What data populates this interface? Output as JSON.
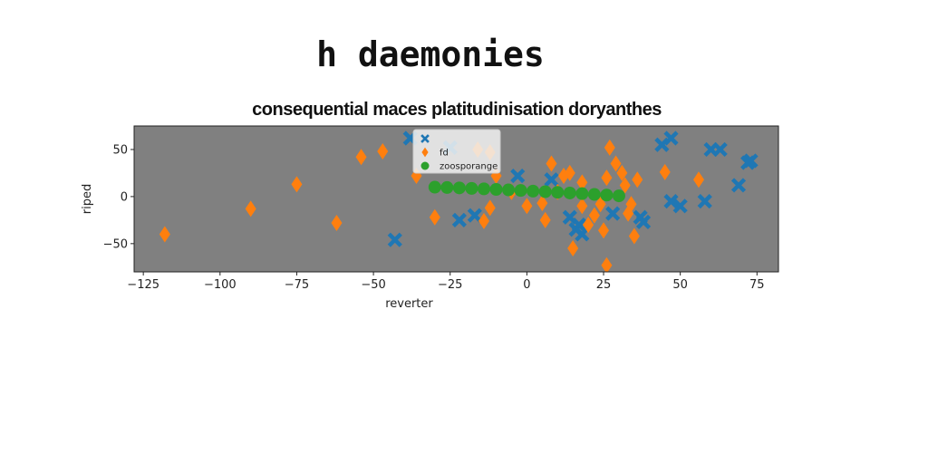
{
  "chart_data": {
    "type": "scatter",
    "suptitle": "h daemonies",
    "title": "consequential maces platitudinisation doryanthes",
    "xlabel": "reverter",
    "ylabel": "riped",
    "xlim": [
      -128,
      82
    ],
    "ylim": [
      -80,
      75
    ],
    "xticks": [
      -125,
      -100,
      -75,
      -50,
      -25,
      0,
      25,
      50,
      75
    ],
    "yticks": [
      -50,
      0,
      50
    ],
    "xtick_labels": [
      "−125",
      "−100",
      "−75",
      "−50",
      "−25",
      "0",
      "25",
      "50",
      "75"
    ],
    "ytick_labels": [
      "−50",
      "0",
      "50"
    ],
    "legend_position": "upper-center",
    "background": "#808080",
    "series": [
      {
        "name": "",
        "marker": "x",
        "color": "#1f77b4",
        "points": [
          [
            -38,
            62
          ],
          [
            -25,
            52
          ],
          [
            -22,
            -25
          ],
          [
            -17,
            -20
          ],
          [
            -3,
            22
          ],
          [
            8,
            18
          ],
          [
            14,
            -22
          ],
          [
            16,
            -35
          ],
          [
            17,
            -30
          ],
          [
            18,
            -40
          ],
          [
            28,
            -18
          ],
          [
            37,
            -22
          ],
          [
            38,
            -27
          ],
          [
            44,
            55
          ],
          [
            47,
            62
          ],
          [
            47,
            -5
          ],
          [
            50,
            -10
          ],
          [
            58,
            -5
          ],
          [
            60,
            50
          ],
          [
            63,
            50
          ],
          [
            69,
            12
          ],
          [
            72,
            36
          ],
          [
            73,
            38
          ],
          [
            -43,
            -46
          ]
        ]
      },
      {
        "name": "fd",
        "marker": "d",
        "color": "#ff7f0e",
        "points": [
          [
            -118,
            -40
          ],
          [
            -90,
            -13
          ],
          [
            -75,
            13
          ],
          [
            -62,
            -28
          ],
          [
            -54,
            42
          ],
          [
            -47,
            48
          ],
          [
            -36,
            22
          ],
          [
            -30,
            -22
          ],
          [
            -16,
            50
          ],
          [
            -12,
            47
          ],
          [
            -14,
            -26
          ],
          [
            -12,
            -12
          ],
          [
            -10,
            22
          ],
          [
            -5,
            5
          ],
          [
            0,
            -10
          ],
          [
            5,
            -7
          ],
          [
            8,
            35
          ],
          [
            10,
            5
          ],
          [
            12,
            22
          ],
          [
            14,
            25
          ],
          [
            6,
            -25
          ],
          [
            15,
            -55
          ],
          [
            18,
            -10
          ],
          [
            20,
            -30
          ],
          [
            22,
            -20
          ],
          [
            24,
            -8
          ],
          [
            25,
            -36
          ],
          [
            26,
            20
          ],
          [
            27,
            52
          ],
          [
            29,
            35
          ],
          [
            31,
            25
          ],
          [
            32,
            12
          ],
          [
            33,
            -18
          ],
          [
            34,
            -8
          ],
          [
            35,
            -42
          ],
          [
            36,
            18
          ],
          [
            45,
            26
          ],
          [
            56,
            18
          ],
          [
            26,
            -73
          ],
          [
            18,
            15
          ]
        ]
      },
      {
        "name": "zoosporange",
        "marker": "o",
        "color": "#2ca02c",
        "points": [
          [
            -30,
            10
          ],
          [
            -26,
            9.6
          ],
          [
            -22,
            9.2
          ],
          [
            -18,
            8.7
          ],
          [
            -14,
            8.2
          ],
          [
            -10,
            7.6
          ],
          [
            -6,
            7.1
          ],
          [
            -2,
            6.5
          ],
          [
            2,
            5.8
          ],
          [
            6,
            5.2
          ],
          [
            10,
            4.5
          ],
          [
            14,
            3.8
          ],
          [
            18,
            3.1
          ],
          [
            22,
            2.3
          ],
          [
            26,
            1.6
          ],
          [
            30,
            0.8
          ]
        ]
      }
    ]
  }
}
